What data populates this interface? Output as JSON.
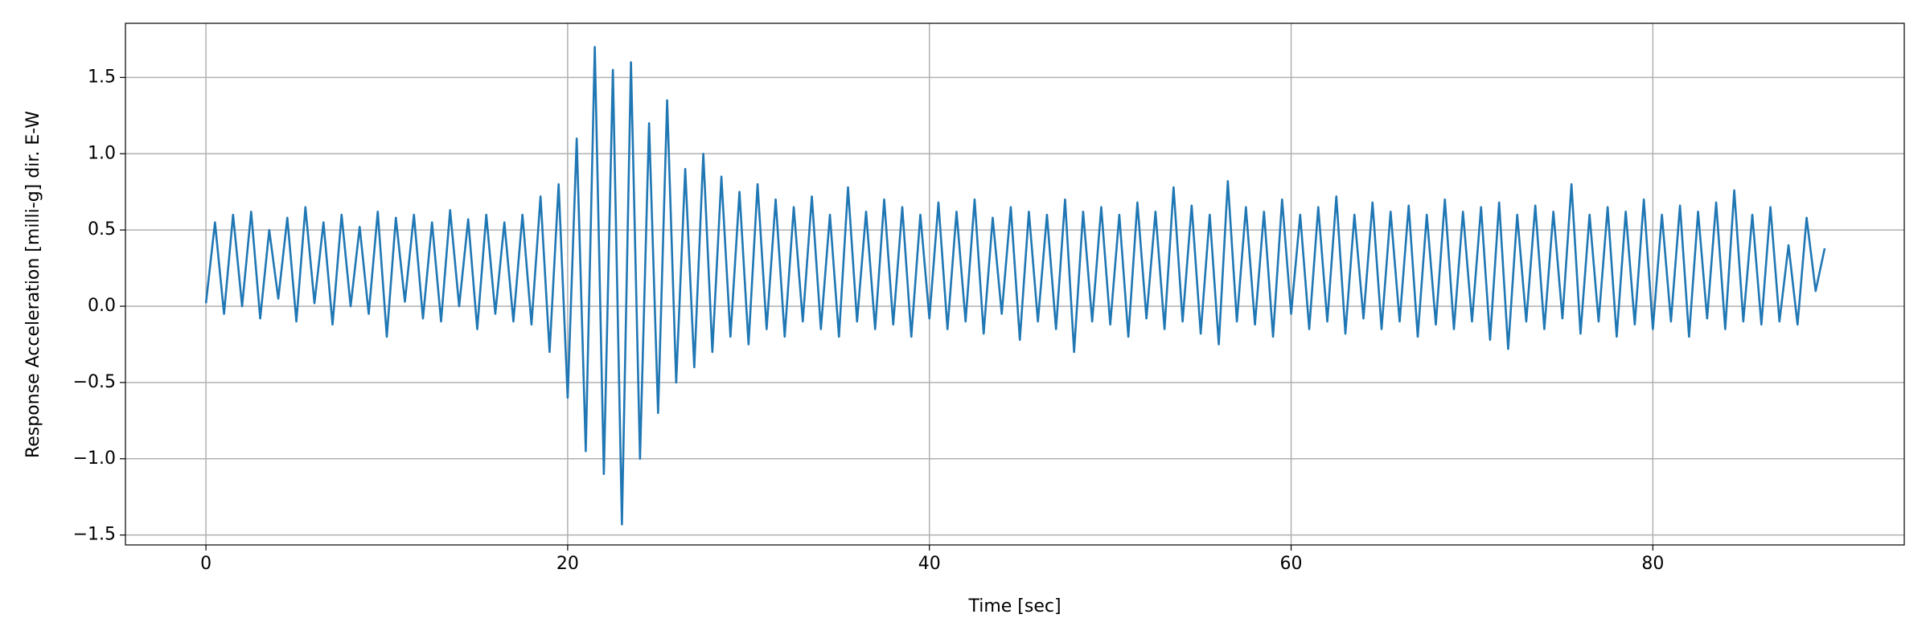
{
  "chart_data": {
    "type": "line",
    "xlabel": "Time [sec]",
    "ylabel": "Response Acceleration [milli-g] dir. E-W",
    "x": [
      0,
      0.5,
      1,
      1.5,
      2,
      2.5,
      3,
      3.5,
      4,
      4.5,
      5,
      5.5,
      6,
      6.5,
      7,
      7.5,
      8,
      8.5,
      9,
      9.5,
      10,
      10.5,
      11,
      11.5,
      12,
      12.5,
      13,
      13.5,
      14,
      14.5,
      15,
      15.5,
      16,
      16.5,
      17,
      17.5,
      18,
      18.5,
      19,
      19.5,
      20,
      20.5,
      21,
      21.5,
      22,
      22.5,
      23,
      23.5,
      24,
      24.5,
      25,
      25.5,
      26,
      26.5,
      27,
      27.5,
      28,
      28.5,
      29,
      29.5,
      30,
      30.5,
      31,
      31.5,
      32,
      32.5,
      33,
      33.5,
      34,
      34.5,
      35,
      35.5,
      36,
      36.5,
      37,
      37.5,
      38,
      38.5,
      39,
      39.5,
      40,
      40.5,
      41,
      41.5,
      42,
      42.5,
      43,
      43.5,
      44,
      44.5,
      45,
      45.5,
      46,
      46.5,
      47,
      47.5,
      48,
      48.5,
      49,
      49.5,
      50,
      50.5,
      51,
      51.5,
      52,
      52.5,
      53,
      53.5,
      54,
      54.5,
      55,
      55.5,
      56,
      56.5,
      57,
      57.5,
      58,
      58.5,
      59,
      59.5,
      60,
      60.5,
      61,
      61.5,
      62,
      62.5,
      63,
      63.5,
      64,
      64.5,
      65,
      65.5,
      66,
      66.5,
      67,
      67.5,
      68,
      68.5,
      69,
      69.5,
      70,
      70.5,
      71,
      71.5,
      72,
      72.5,
      73,
      73.5,
      74,
      74.5,
      75,
      75.5,
      76,
      76.5,
      77,
      77.5,
      78,
      78.5,
      79,
      79.5,
      80,
      80.5,
      81,
      81.5,
      82,
      82.5,
      83,
      83.5,
      84,
      84.5,
      85,
      85.5,
      86,
      86.5,
      87,
      87.5,
      88,
      88.5,
      89,
      89.5
    ],
    "series": [
      {
        "name": "E-W",
        "color": "#1f77b4",
        "values": [
          0.02,
          0.55,
          -0.05,
          0.6,
          0.0,
          0.62,
          -0.08,
          0.5,
          0.05,
          0.58,
          -0.1,
          0.65,
          0.02,
          0.55,
          -0.12,
          0.6,
          0.0,
          0.52,
          -0.05,
          0.62,
          -0.2,
          0.58,
          0.03,
          0.6,
          -0.08,
          0.55,
          -0.1,
          0.63,
          0.0,
          0.57,
          -0.15,
          0.6,
          -0.05,
          0.55,
          -0.1,
          0.6,
          -0.12,
          0.72,
          -0.3,
          0.8,
          -0.6,
          1.1,
          -0.95,
          1.7,
          -1.1,
          1.55,
          -1.43,
          1.6,
          -1.0,
          1.2,
          -0.7,
          1.35,
          -0.5,
          0.9,
          -0.4,
          1.0,
          -0.3,
          0.85,
          -0.2,
          0.75,
          -0.25,
          0.8,
          -0.15,
          0.7,
          -0.2,
          0.65,
          -0.1,
          0.72,
          -0.15,
          0.6,
          -0.2,
          0.78,
          -0.1,
          0.62,
          -0.15,
          0.7,
          -0.12,
          0.65,
          -0.2,
          0.6,
          -0.08,
          0.68,
          -0.15,
          0.62,
          -0.1,
          0.7,
          -0.18,
          0.58,
          -0.05,
          0.65,
          -0.22,
          0.62,
          -0.1,
          0.6,
          -0.15,
          0.7,
          -0.3,
          0.62,
          -0.1,
          0.65,
          -0.12,
          0.6,
          -0.2,
          0.68,
          -0.08,
          0.62,
          -0.15,
          0.78,
          -0.1,
          0.66,
          -0.18,
          0.6,
          -0.25,
          0.82,
          -0.1,
          0.65,
          -0.12,
          0.62,
          -0.2,
          0.7,
          -0.05,
          0.6,
          -0.15,
          0.65,
          -0.1,
          0.72,
          -0.18,
          0.6,
          -0.08,
          0.68,
          -0.15,
          0.62,
          -0.1,
          0.66,
          -0.2,
          0.6,
          -0.12,
          0.7,
          -0.15,
          0.62,
          -0.1,
          0.65,
          -0.22,
          0.68,
          -0.28,
          0.6,
          -0.1,
          0.66,
          -0.15,
          0.62,
          -0.08,
          0.8,
          -0.18,
          0.6,
          -0.1,
          0.65,
          -0.2,
          0.62,
          -0.12,
          0.7,
          -0.15,
          0.6,
          -0.1,
          0.66,
          -0.2,
          0.62,
          -0.08,
          0.68,
          -0.15,
          0.76,
          -0.1,
          0.6,
          -0.12,
          0.65,
          -0.1,
          0.4,
          -0.12,
          0.58,
          0.1,
          0.38
        ]
      }
    ],
    "xlim": [
      -4.45,
      93.9
    ],
    "xticks": [
      0,
      20,
      40,
      60,
      80
    ],
    "ylim": [
      -1.565,
      1.855
    ],
    "yticks": [
      {
        "value": -1.5,
        "label": "−1.5"
      },
      {
        "value": -1.0,
        "label": "−1.0"
      },
      {
        "value": -0.5,
        "label": "−0.5"
      },
      {
        "value": 0,
        "label": "0.0"
      },
      {
        "value": 0.5,
        "label": "0.5"
      },
      {
        "value": 1.0,
        "label": "1.0"
      },
      {
        "value": 1.5,
        "label": "1.5"
      }
    ],
    "grid": true
  }
}
